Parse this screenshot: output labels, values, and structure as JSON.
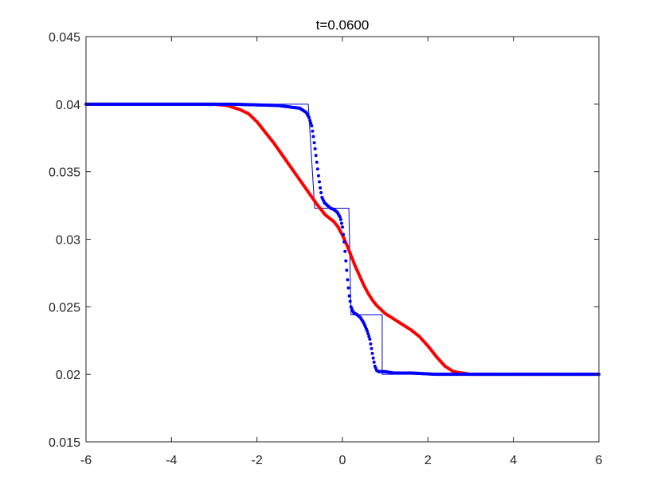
{
  "chart_data": {
    "type": "line",
    "title": "t=0.0600",
    "xlabel": "",
    "ylabel": "",
    "xlim": [
      -6,
      6
    ],
    "ylim": [
      0.015,
      0.045
    ],
    "xticks": [
      -6,
      -4,
      -2,
      0,
      2,
      4,
      6
    ],
    "xtick_labels": [
      "-6",
      "-4",
      "-2",
      "0",
      "2",
      "4",
      "6"
    ],
    "yticks": [
      0.015,
      0.02,
      0.025,
      0.03,
      0.035,
      0.04,
      0.045
    ],
    "ytick_labels": [
      "0.015",
      "0.02",
      "0.025",
      "0.03",
      "0.035",
      "0.04",
      "0.045"
    ],
    "grid": false,
    "legend": "none",
    "series": [
      {
        "style": "solid thin",
        "color": "#0000c8",
        "x": [
          -6,
          -0.8,
          -0.8,
          -0.65,
          -0.65,
          0.15,
          0.15,
          0.2,
          0.2,
          0.93,
          0.93,
          6
        ],
        "y": [
          0.04,
          0.04,
          0.04,
          0.0323,
          0.0323,
          0.0323,
          0.0323,
          0.0244,
          0.0244,
          0.0244,
          0.02,
          0.02
        ]
      },
      {
        "style": "solid thick",
        "color": "#ff0000",
        "x": [
          -6,
          -3,
          -2.7,
          -2.4,
          -2.2,
          -2,
          -1.8,
          -1.6,
          -1.4,
          -1.2,
          -1,
          -0.8,
          -0.6,
          -0.4,
          -0.2,
          -0.1,
          0,
          0.1,
          0.2,
          0.3,
          0.4,
          0.5,
          0.6,
          0.7,
          0.8,
          0.9,
          1,
          1.2,
          1.4,
          1.6,
          1.8,
          2,
          2.2,
          2.4,
          2.6,
          2.8,
          3,
          6
        ],
        "y": [
          0.04,
          0.04,
          0.0399,
          0.0396,
          0.0393,
          0.0387,
          0.0379,
          0.0371,
          0.0362,
          0.0353,
          0.0344,
          0.0335,
          0.0326,
          0.0318,
          0.0313,
          0.0309,
          0.0303,
          0.0296,
          0.0288,
          0.028,
          0.0273,
          0.0266,
          0.026,
          0.0255,
          0.0251,
          0.0248,
          0.0245,
          0.0241,
          0.0237,
          0.0233,
          0.0228,
          0.0221,
          0.0213,
          0.0206,
          0.0202,
          0.0201,
          0.02,
          0.02
        ]
      },
      {
        "style": "dots",
        "color": "#0000ff",
        "x": [
          -6,
          -2.6,
          -1.5,
          -1.0,
          -0.85,
          -0.78,
          -0.72,
          -0.68,
          -0.64,
          -0.6,
          -0.56,
          -0.52,
          -0.48,
          -0.42,
          -0.35,
          -0.28,
          -0.2,
          -0.12,
          -0.05,
          0.0,
          0.04,
          0.08,
          0.12,
          0.16,
          0.2,
          0.25,
          0.3,
          0.35,
          0.42,
          0.5,
          0.58,
          0.64,
          0.68,
          0.72,
          0.76,
          0.8,
          0.84,
          0.9,
          1.0,
          1.2,
          1.6,
          2.2,
          3,
          6
        ],
        "y": [
          0.04,
          0.04,
          0.0399,
          0.0397,
          0.0394,
          0.039,
          0.0384,
          0.0376,
          0.0367,
          0.0357,
          0.0347,
          0.0338,
          0.0331,
          0.0327,
          0.0325,
          0.0323,
          0.0322,
          0.032,
          0.0316,
          0.0309,
          0.0298,
          0.0284,
          0.027,
          0.0258,
          0.025,
          0.0246,
          0.0245,
          0.0244,
          0.0242,
          0.0238,
          0.0232,
          0.0226,
          0.0219,
          0.0212,
          0.0206,
          0.0203,
          0.0202,
          0.0202,
          0.0202,
          0.0201,
          0.0201,
          0.02,
          0.02,
          0.02
        ]
      }
    ]
  }
}
